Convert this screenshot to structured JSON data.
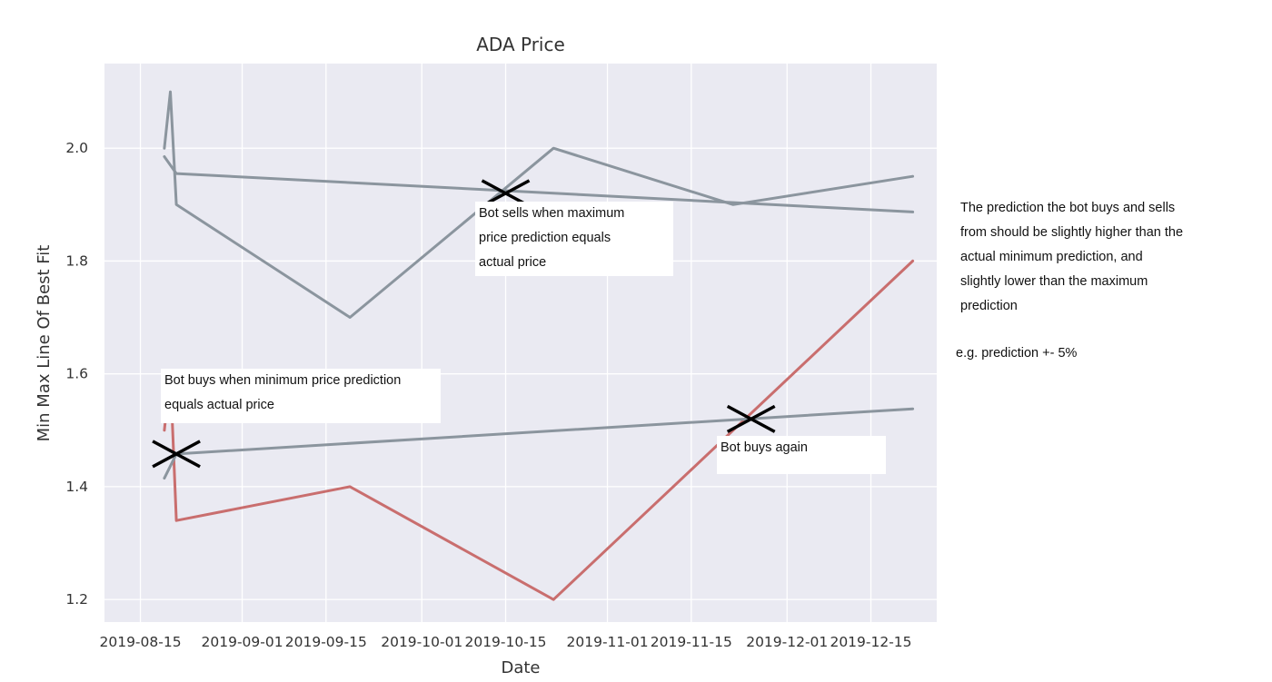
{
  "chart_data": {
    "type": "line",
    "title": "ADA Price",
    "xlabel": "Date",
    "ylabel": "Min Max Line Of Best Fit",
    "x_ticks": [
      "2019-08-15",
      "2019-09-01",
      "2019-09-15",
      "2019-10-01",
      "2019-10-15",
      "2019-11-01",
      "2019-11-15",
      "2019-12-01",
      "2019-12-15"
    ],
    "y_ticks": [
      "1.2",
      "1.4",
      "1.6",
      "1.8",
      "2.0"
    ],
    "xlim": [
      "2019-08-09",
      "2019-12-26"
    ],
    "ylim": [
      1.16,
      2.15
    ],
    "grid": true,
    "background": "#eaeaf2",
    "series": [
      {
        "color": "#8b959e",
        "points": [
          [
            "2019-08-19",
            2.0
          ],
          [
            "2019-08-20",
            2.1
          ],
          [
            "2019-08-21",
            1.9
          ],
          [
            "2019-09-19",
            1.7
          ],
          [
            "2019-10-23",
            2.0
          ],
          [
            "2019-11-22",
            1.9
          ],
          [
            "2019-12-22",
            1.95
          ]
        ]
      },
      {
        "color": "#8b959e",
        "points": [
          [
            "2019-08-19",
            1.985
          ],
          [
            "2019-08-21",
            1.955
          ],
          [
            "2019-12-22",
            1.887
          ]
        ]
      },
      {
        "color": "#c96e6e",
        "points": [
          [
            "2019-08-19",
            1.5
          ],
          [
            "2019-08-20",
            1.6
          ],
          [
            "2019-08-21",
            1.34
          ],
          [
            "2019-09-19",
            1.4
          ],
          [
            "2019-10-23",
            1.2
          ],
          [
            "2019-12-22",
            1.8
          ]
        ]
      },
      {
        "color": "#8b959e",
        "points": [
          [
            "2019-08-19",
            1.415
          ],
          [
            "2019-08-21",
            1.458
          ],
          [
            "2019-12-22",
            1.538
          ]
        ]
      }
    ],
    "markers": [
      {
        "x": "2019-08-21",
        "y": 1.458
      },
      {
        "x": "2019-10-15",
        "y": 1.92
      },
      {
        "x": "2019-11-25",
        "y": 1.52
      }
    ],
    "annotations": [
      {
        "text": "Bot sells when maximum\nprice prediction equals\nactual price"
      },
      {
        "text": "Bot buys when minimum price prediction\nequals actual price"
      },
      {
        "text": "Bot buys again"
      }
    ]
  },
  "side_note": "The prediction the bot buys and sells\nfrom should be slightly higher than the\nactual minimum prediction, and\nslightly lower than the maximum\nprediction",
  "side_example": "e.g. prediction +- 5%"
}
